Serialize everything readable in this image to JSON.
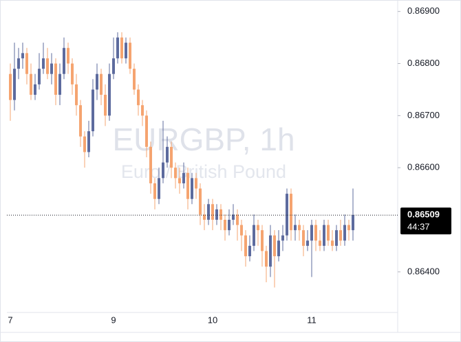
{
  "chart_data": {
    "type": "candlestick",
    "title": "EURGBP, 1h",
    "subtitle": "Euro / British Pound",
    "categories": [
      "7",
      null,
      null,
      null,
      null,
      null,
      null,
      null,
      null,
      null,
      null,
      null,
      null,
      null,
      null,
      null,
      null,
      null,
      null,
      null,
      null,
      null,
      null,
      null,
      null,
      "9",
      null,
      null,
      null,
      null,
      null,
      null,
      null,
      null,
      null,
      null,
      null,
      null,
      null,
      null,
      null,
      null,
      null,
      null,
      null,
      null,
      null,
      null,
      null,
      "10",
      null,
      null,
      null,
      null,
      null,
      null,
      null,
      null,
      null,
      null,
      null,
      null,
      null,
      null,
      null,
      null,
      null,
      null,
      null,
      null,
      null,
      null,
      null,
      "11",
      null,
      null,
      null,
      null,
      null,
      null,
      null,
      null,
      null,
      null
    ],
    "open": [
      0.8678,
      0.8673,
      0.8679,
      0.8681,
      0.8682,
      0.8678,
      0.8674,
      0.8676,
      0.8679,
      0.8681,
      0.8678,
      0.868,
      0.8674,
      0.8678,
      0.8683,
      0.868,
      0.8676,
      0.8672,
      0.8666,
      0.8663,
      0.8667,
      0.8675,
      0.8678,
      0.8674,
      0.867,
      0.8678,
      0.8681,
      0.8685,
      0.8681,
      0.8684,
      0.8679,
      0.8675,
      0.8672,
      0.867,
      0.8664,
      0.8657,
      0.8654,
      0.8658,
      0.8661,
      0.8664,
      0.866,
      0.8658,
      0.8657,
      0.8659,
      0.8654,
      0.8658,
      0.8656,
      0.8651,
      0.865,
      0.8653,
      0.865,
      0.8652,
      0.865,
      0.8648,
      0.865,
      0.8651,
      0.8649,
      0.8647,
      0.8643,
      0.8645,
      0.8649,
      0.8648,
      0.8644,
      0.8641,
      0.8647,
      0.8643,
      0.8646,
      0.8647,
      0.8655,
      0.8648,
      0.8649,
      0.8648,
      0.8645,
      0.8646,
      0.8649,
      0.8646,
      0.8645,
      0.8649,
      0.8646,
      0.8645,
      0.8648,
      0.8646,
      0.8649,
      0.8648
    ],
    "high": [
      0.868,
      0.8684,
      0.8683,
      0.8684,
      0.8683,
      0.868,
      0.8678,
      0.8682,
      0.8684,
      0.8683,
      0.8682,
      0.8681,
      0.868,
      0.8685,
      0.8684,
      0.8681,
      0.8678,
      0.8673,
      0.8667,
      0.8669,
      0.8677,
      0.868,
      0.8679,
      0.8676,
      0.868,
      0.8685,
      0.8686,
      0.8686,
      0.8685,
      0.8685,
      0.868,
      0.8676,
      0.8673,
      0.8671,
      0.8665,
      0.8658,
      0.866,
      0.8669,
      0.8666,
      0.8665,
      0.8661,
      0.866,
      0.8661,
      0.866,
      0.8659,
      0.8659,
      0.8657,
      0.8653,
      0.8654,
      0.8654,
      0.8653,
      0.8653,
      0.8651,
      0.8652,
      0.8653,
      0.8652,
      0.865,
      0.8648,
      0.8647,
      0.8651,
      0.865,
      0.8649,
      0.8645,
      0.8649,
      0.8648,
      0.8648,
      0.8649,
      0.8656,
      0.8656,
      0.8651,
      0.865,
      0.8649,
      0.8648,
      0.865,
      0.865,
      0.8648,
      0.865,
      0.865,
      0.8648,
      0.8649,
      0.865,
      0.8651,
      0.865,
      0.8656
    ],
    "low": [
      0.8669,
      0.8671,
      0.8677,
      0.8679,
      0.8676,
      0.8673,
      0.8673,
      0.8675,
      0.8678,
      0.8677,
      0.8676,
      0.8672,
      0.8672,
      0.8677,
      0.8678,
      0.8674,
      0.867,
      0.8664,
      0.866,
      0.8662,
      0.8666,
      0.8673,
      0.8672,
      0.8668,
      0.8669,
      0.8677,
      0.868,
      0.868,
      0.868,
      0.8678,
      0.8674,
      0.867,
      0.8668,
      0.8662,
      0.8655,
      0.8652,
      0.8653,
      0.8657,
      0.866,
      0.8658,
      0.8656,
      0.8655,
      0.8656,
      0.8652,
      0.8653,
      0.8654,
      0.8649,
      0.8648,
      0.8649,
      0.8648,
      0.8649,
      0.8648,
      0.8646,
      0.8647,
      0.8649,
      0.8646,
      0.8644,
      0.8641,
      0.8642,
      0.8644,
      0.8645,
      0.8641,
      0.8638,
      0.8639,
      0.8637,
      0.8642,
      0.8644,
      0.8646,
      0.8646,
      0.8646,
      0.8646,
      0.8643,
      0.8644,
      0.8639,
      0.8644,
      0.8644,
      0.8644,
      0.8645,
      0.8644,
      0.8644,
      0.8645,
      0.8645,
      0.8646,
      0.8646
    ],
    "close": [
      0.8673,
      0.8679,
      0.8681,
      0.8682,
      0.8678,
      0.8674,
      0.8676,
      0.8679,
      0.8681,
      0.8678,
      0.868,
      0.8674,
      0.8678,
      0.8683,
      0.868,
      0.8676,
      0.8672,
      0.8666,
      0.8663,
      0.8667,
      0.8675,
      0.8678,
      0.8674,
      0.867,
      0.8678,
      0.8681,
      0.8685,
      0.8681,
      0.8684,
      0.8679,
      0.8675,
      0.8672,
      0.867,
      0.8664,
      0.8657,
      0.8654,
      0.8658,
      0.8661,
      0.8664,
      0.866,
      0.8658,
      0.8657,
      0.8659,
      0.8654,
      0.8658,
      0.8656,
      0.8651,
      0.865,
      0.8653,
      0.865,
      0.8652,
      0.865,
      0.8648,
      0.865,
      0.8651,
      0.8649,
      0.8647,
      0.8643,
      0.8645,
      0.8649,
      0.8648,
      0.8644,
      0.8641,
      0.8647,
      0.8643,
      0.8646,
      0.8647,
      0.8655,
      0.8648,
      0.8649,
      0.8648,
      0.8645,
      0.8646,
      0.8649,
      0.8646,
      0.8645,
      0.8649,
      0.8646,
      0.8645,
      0.8648,
      0.8646,
      0.8649,
      0.8648,
      0.86509
    ],
    "up_color": "#5d6b9e",
    "down_color": "#f5a470",
    "ylim": [
      0.86322,
      0.86922
    ],
    "yticks": [
      {
        "value": 0.869,
        "label": "0.86900"
      },
      {
        "value": 0.868,
        "label": "0.86800"
      },
      {
        "value": 0.867,
        "label": "0.86700"
      },
      {
        "value": 0.866,
        "label": "0.86600"
      },
      {
        "value": 0.864,
        "label": "0.86400"
      }
    ],
    "last_price": 0.86509,
    "countdown": "44:37"
  }
}
